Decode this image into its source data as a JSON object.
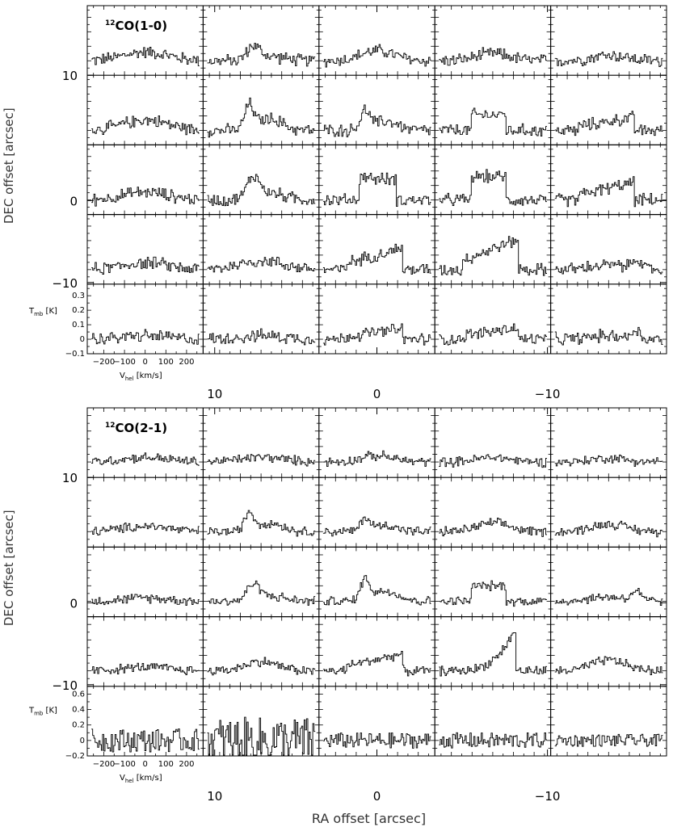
{
  "chart_data": [
    {
      "type": "line",
      "line_name": "12CO(1-0)",
      "label_sup": "12",
      "label_main": "CO(1-0)",
      "grid": {
        "rows": 5,
        "cols": 5
      },
      "yaxis": {
        "label": "DEC offset [arcsec]",
        "ticks": [
          "10",
          "0",
          "−10"
        ]
      },
      "xaxis_outer": {
        "ticks": [
          "10",
          "0",
          "−10"
        ]
      },
      "spectrum_axes": {
        "xlabel_main": "V",
        "xlabel_sub": "hel",
        "xlabel_unit": " [km/s]",
        "ylabel_main": "T",
        "ylabel_sub": "mb",
        "ylabel_unit": " [K]",
        "xticks": [
          "−200",
          "−100",
          "0",
          "100",
          "200"
        ],
        "yticks": [
          "0.3",
          "0.2",
          "0.1",
          "0",
          "−0.1"
        ],
        "velocity_range": [
          -280,
          280
        ],
        "tmb_range": [
          -0.1,
          0.38
        ]
      },
      "peaks_K": [
        [
          0.1,
          0.1,
          0.07,
          0.05,
          0.04
        ],
        [
          0.12,
          0.18,
          0.14,
          0.12,
          0.09
        ],
        [
          0.09,
          0.16,
          0.17,
          0.18,
          0.12
        ],
        [
          0.08,
          0.1,
          0.15,
          0.21,
          0.09
        ],
        [
          0.04,
          0.04,
          0.07,
          0.08,
          0.07
        ]
      ]
    },
    {
      "type": "line",
      "line_name": "12CO(2-1)",
      "label_sup": "12",
      "label_main": "CO(2-1)",
      "grid": {
        "rows": 5,
        "cols": 5
      },
      "yaxis": {
        "label": "DEC offset [arcsec]",
        "ticks": [
          "10",
          "0",
          "−10"
        ]
      },
      "xaxis_outer": {
        "label": "RA offset [arcsec]",
        "ticks": [
          "10",
          "0",
          "−10"
        ]
      },
      "spectrum_axes": {
        "xlabel_main": "V",
        "xlabel_sub": "hel",
        "xlabel_unit": " [km/s]",
        "ylabel_main": "T",
        "ylabel_sub": "mb",
        "ylabel_unit": " [K]",
        "xticks": [
          "−200",
          "−100",
          "0",
          "100",
          "200"
        ],
        "yticks": [
          "0.6",
          "0.4",
          "0.2",
          "0",
          "−0.2"
        ],
        "velocity_range": [
          -280,
          280
        ],
        "tmb_range": [
          -0.2,
          0.7
        ]
      },
      "peaks_K": [
        [
          0.1,
          0.1,
          0.08,
          0.06,
          0.05
        ],
        [
          0.12,
          0.26,
          0.18,
          0.11,
          0.1
        ],
        [
          0.07,
          0.22,
          0.3,
          0.22,
          0.16
        ],
        [
          0.08,
          0.12,
          0.22,
          0.55,
          0.14
        ],
        [
          0.15,
          0.3,
          0.1,
          0.1,
          0.08
        ]
      ]
    }
  ]
}
